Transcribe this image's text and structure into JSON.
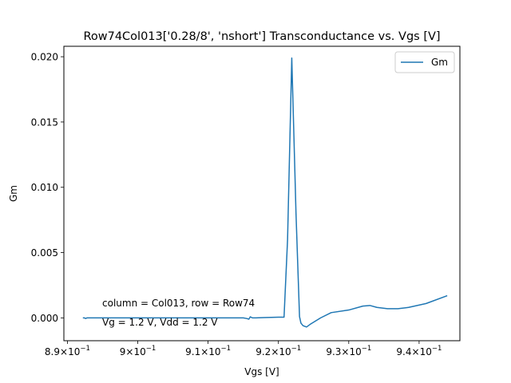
{
  "chart_data": {
    "type": "line",
    "title": "Row74Col013['0.28/8', 'nshort'] Transconductance vs. Vgs [V]",
    "xlabel": "Vgs [V]",
    "ylabel": "Gm",
    "xlim": [
      0.8895,
      0.9458
    ],
    "ylim": [
      -0.00175,
      0.0208
    ],
    "x_ticks": [
      {
        "value": 0.89,
        "base": "8.9",
        "exp": "−1"
      },
      {
        "value": 0.9,
        "base": "9",
        "exp": "−1"
      },
      {
        "value": 0.91,
        "base": "9.1",
        "exp": "−1"
      },
      {
        "value": 0.92,
        "base": "9.2",
        "exp": "−1"
      },
      {
        "value": 0.93,
        "base": "9.3",
        "exp": "−1"
      },
      {
        "value": 0.94,
        "base": "9.4",
        "exp": "−1"
      }
    ],
    "y_ticks": [
      {
        "value": 0.0,
        "label": "0.000"
      },
      {
        "value": 0.005,
        "label": "0.005"
      },
      {
        "value": 0.01,
        "label": "0.010"
      },
      {
        "value": 0.015,
        "label": "0.015"
      },
      {
        "value": 0.02,
        "label": "0.020"
      }
    ],
    "grid": false,
    "legend_position": "top-right",
    "series": [
      {
        "name": "Gm",
        "color": "#1f77b4",
        "points": [
          [
            0.8922,
            0.0
          ],
          [
            0.8924,
            0.0
          ],
          [
            0.8926,
            -5e-05
          ],
          [
            0.8928,
            0.0
          ],
          [
            0.8935,
            0.0
          ],
          [
            0.895,
            0.0
          ],
          [
            0.898,
            0.0
          ],
          [
            0.901,
            0.0
          ],
          [
            0.905,
            0.0
          ],
          [
            0.91,
            0.0
          ],
          [
            0.915,
            0.0
          ],
          [
            0.9155,
            -5e-05
          ],
          [
            0.9158,
            -0.0001
          ],
          [
            0.916,
            8e-05
          ],
          [
            0.9163,
            0.0
          ],
          [
            0.9168,
            0.0
          ],
          [
            0.918,
            2e-05
          ],
          [
            0.92,
            5e-05
          ],
          [
            0.9208,
            5e-05
          ],
          [
            0.9213,
            0.006
          ],
          [
            0.9219,
            0.0199
          ],
          [
            0.9225,
            0.008
          ],
          [
            0.923,
            0.0001
          ],
          [
            0.9232,
            -0.0004
          ],
          [
            0.9235,
            -0.0006
          ],
          [
            0.924,
            -0.0007
          ],
          [
            0.9245,
            -0.0005
          ],
          [
            0.926,
            0.0
          ],
          [
            0.9275,
            0.0004
          ],
          [
            0.93,
            0.0006
          ],
          [
            0.932,
            0.0009
          ],
          [
            0.933,
            0.00095
          ],
          [
            0.934,
            0.0008
          ],
          [
            0.9355,
            0.0007
          ],
          [
            0.937,
            0.0007
          ],
          [
            0.9385,
            0.0008
          ],
          [
            0.941,
            0.0011
          ],
          [
            0.944,
            0.0017
          ]
        ]
      }
    ],
    "annotations": [
      "column = Col013, row = Row74",
      "Vg = 1.2 V, Vdd = 1.2 V"
    ]
  }
}
